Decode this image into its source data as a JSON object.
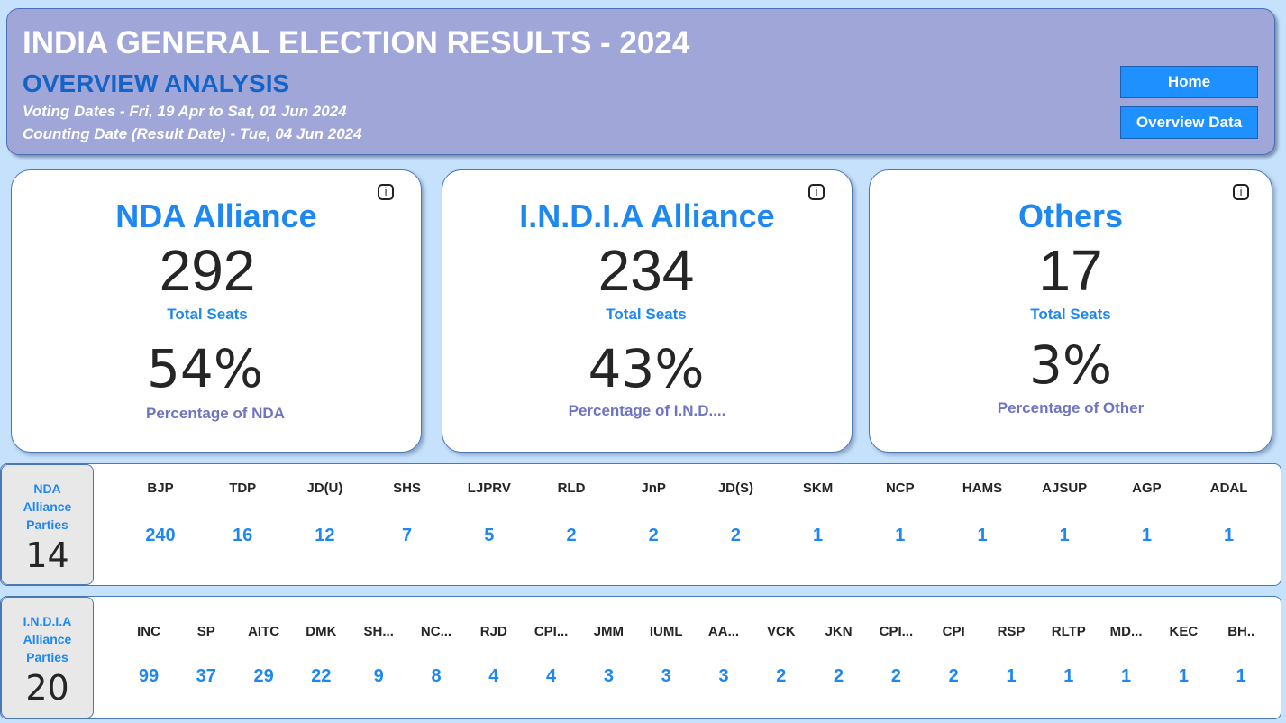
{
  "header": {
    "title": "INDIA GENERAL ELECTION RESULTS - 2024",
    "subtitle": "OVERVIEW ANALYSIS",
    "voting_dates": "Voting Dates - Fri, 19 Apr to Sat, 01 Jun 2024",
    "counting_date": "Counting Date (Result Date) - Tue, 04 Jun 2024",
    "home_button": "Home",
    "overview_button": "Overview Data"
  },
  "cards": [
    {
      "title": "NDA Alliance",
      "seats": "292",
      "seats_label": "Total Seats",
      "percent": "54%",
      "percent_label": "Percentage of NDA",
      "info": "i"
    },
    {
      "title": "I.N.D.I.A Alliance",
      "seats": "234",
      "seats_label": "Total Seats",
      "percent": "43%",
      "percent_label": "Percentage of I.N.D....",
      "info": "i"
    },
    {
      "title": "Others",
      "seats": "17",
      "seats_label": "Total Seats",
      "percent": "3%",
      "percent_label": "Percentage of Other",
      "info": "i"
    }
  ],
  "nda_parties": {
    "label_lines": [
      "NDA",
      "Alliance",
      "Parties"
    ],
    "count": "14",
    "parties": [
      {
        "name": "BJP",
        "seats": "240"
      },
      {
        "name": "TDP",
        "seats": "16"
      },
      {
        "name": "JD(U)",
        "seats": "12"
      },
      {
        "name": "SHS",
        "seats": "7"
      },
      {
        "name": "LJPRV",
        "seats": "5"
      },
      {
        "name": "RLD",
        "seats": "2"
      },
      {
        "name": "JnP",
        "seats": "2"
      },
      {
        "name": "JD(S)",
        "seats": "2"
      },
      {
        "name": "SKM",
        "seats": "1"
      },
      {
        "name": "NCP",
        "seats": "1"
      },
      {
        "name": "HAMS",
        "seats": "1"
      },
      {
        "name": "AJSUP",
        "seats": "1"
      },
      {
        "name": "AGP",
        "seats": "1"
      },
      {
        "name": "ADAL",
        "seats": "1"
      }
    ]
  },
  "india_parties": {
    "label_lines": [
      "I.N.D.I.A",
      "Alliance",
      "Parties"
    ],
    "count": "20",
    "parties": [
      {
        "name": "INC",
        "seats": "99"
      },
      {
        "name": "SP",
        "seats": "37"
      },
      {
        "name": "AITC",
        "seats": "29"
      },
      {
        "name": "DMK",
        "seats": "22"
      },
      {
        "name": "SH...",
        "seats": "9"
      },
      {
        "name": "NC...",
        "seats": "8"
      },
      {
        "name": "RJD",
        "seats": "4"
      },
      {
        "name": "CPI...",
        "seats": "4"
      },
      {
        "name": "JMM",
        "seats": "3"
      },
      {
        "name": "IUML",
        "seats": "3"
      },
      {
        "name": "AA...",
        "seats": "3"
      },
      {
        "name": "VCK",
        "seats": "2"
      },
      {
        "name": "JKN",
        "seats": "2"
      },
      {
        "name": "CPI...",
        "seats": "2"
      },
      {
        "name": "CPI",
        "seats": "2"
      },
      {
        "name": "RSP",
        "seats": "1"
      },
      {
        "name": "RLTP",
        "seats": "1"
      },
      {
        "name": "MD...",
        "seats": "1"
      },
      {
        "name": "KEC",
        "seats": "1"
      },
      {
        "name": "BH..",
        "seats": "1"
      }
    ]
  }
}
